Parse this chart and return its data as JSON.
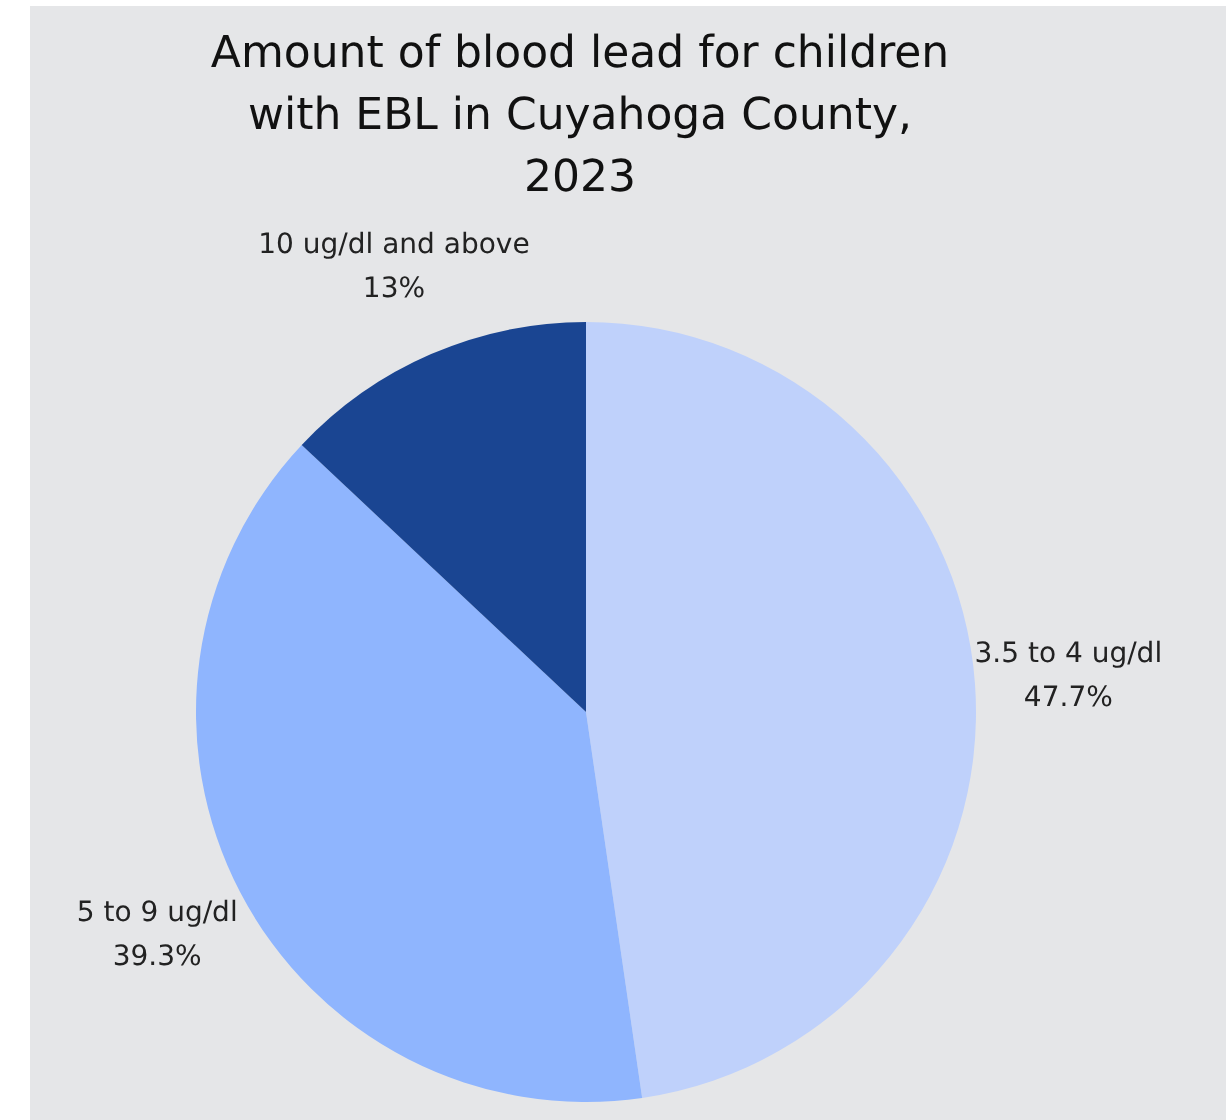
{
  "chart_data": {
    "type": "pie",
    "title": "Amount of blood lead for children with EBL in Cuyahoga County, 2023",
    "categories": [
      "3.5 to 4 ug/dl",
      "5 to 9 ug/dl",
      "10 ug/dl and above"
    ],
    "values": [
      47.7,
      39.3,
      13
    ],
    "colors": [
      "#bfd1fb",
      "#8fb5fe",
      "#1a4592"
    ],
    "value_labels": [
      "47.7%",
      "39.3%",
      "13%"
    ],
    "legend": false
  }
}
